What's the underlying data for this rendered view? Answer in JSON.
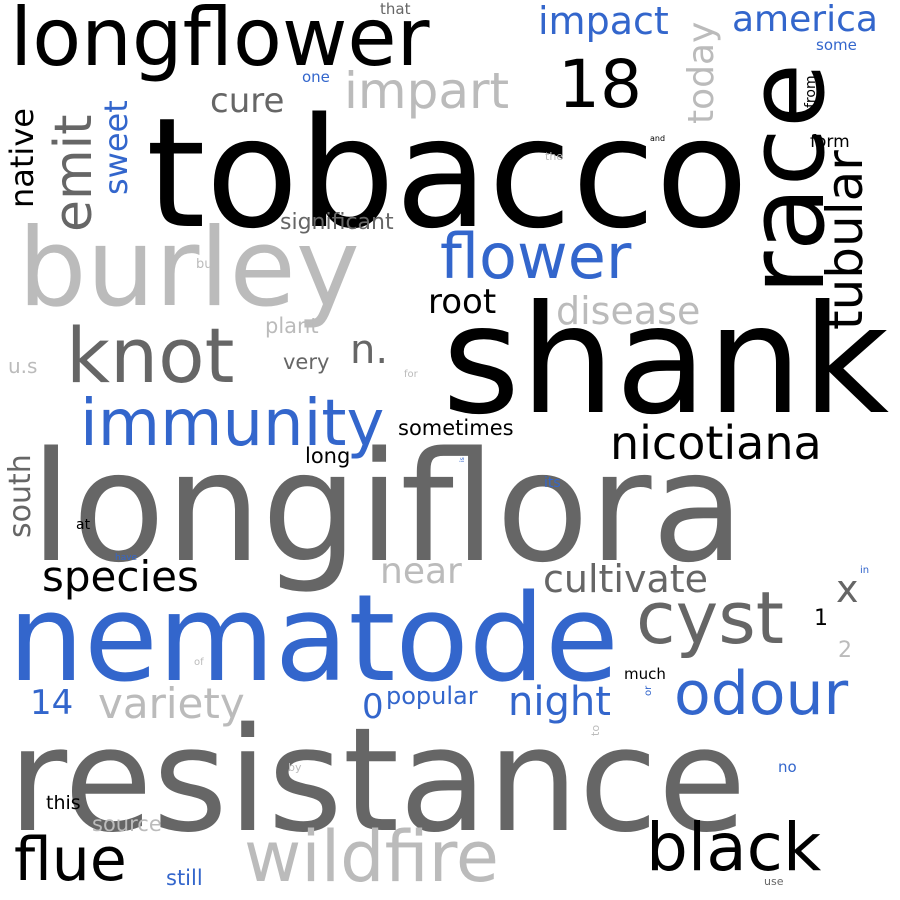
{
  "colors": {
    "black": "#000000",
    "dark_gray": "#666666",
    "light_gray": "#bbbbbb",
    "blue": "#3366cc",
    "background": "#ffffff"
  },
  "words": [
    {
      "text": "tobacco",
      "color": "black"
    },
    {
      "text": "longiflora",
      "color": "dark_gray"
    },
    {
      "text": "resistance",
      "color": "dark_gray"
    },
    {
      "text": "shank",
      "color": "black"
    },
    {
      "text": "nematode",
      "color": "blue"
    },
    {
      "text": "burley",
      "color": "light_gray"
    },
    {
      "text": "race",
      "color": "black"
    },
    {
      "text": "longflower",
      "color": "black"
    },
    {
      "text": "wildfire",
      "color": "light_gray"
    },
    {
      "text": "knot",
      "color": "dark_gray"
    },
    {
      "text": "black",
      "color": "black"
    },
    {
      "text": "immunity",
      "color": "blue"
    },
    {
      "text": "cyst",
      "color": "dark_gray"
    },
    {
      "text": "flower",
      "color": "blue"
    },
    {
      "text": "odour",
      "color": "blue"
    },
    {
      "text": "flue",
      "color": "black"
    },
    {
      "text": "tubular",
      "color": "black"
    },
    {
      "text": "emit",
      "color": "dark_gray"
    },
    {
      "text": "18",
      "color": "black"
    },
    {
      "text": "impart",
      "color": "light_gray"
    },
    {
      "text": "nicotiana",
      "color": "black"
    },
    {
      "text": "species",
      "color": "black"
    },
    {
      "text": "impact",
      "color": "blue"
    },
    {
      "text": "america",
      "color": "blue"
    },
    {
      "text": "variety",
      "color": "light_gray"
    },
    {
      "text": "cultivate",
      "color": "dark_gray"
    },
    {
      "text": "disease",
      "color": "light_gray"
    },
    {
      "text": "night",
      "color": "blue"
    },
    {
      "text": "today",
      "color": "light_gray"
    },
    {
      "text": "cure",
      "color": "dark_gray"
    },
    {
      "text": "root",
      "color": "black"
    },
    {
      "text": "native",
      "color": "black"
    },
    {
      "text": "sweet",
      "color": "blue"
    },
    {
      "text": "near",
      "color": "light_gray"
    },
    {
      "text": "n.",
      "color": "dark_gray"
    },
    {
      "text": "south",
      "color": "dark_gray"
    },
    {
      "text": "x",
      "color": "dark_gray"
    },
    {
      "text": "14",
      "color": "blue"
    },
    {
      "text": "0",
      "color": "blue"
    },
    {
      "text": "popular",
      "color": "blue"
    },
    {
      "text": "significant",
      "color": "dark_gray"
    },
    {
      "text": "sometimes",
      "color": "black"
    },
    {
      "text": "source",
      "color": "light_gray"
    },
    {
      "text": "plant",
      "color": "light_gray"
    },
    {
      "text": "very",
      "color": "dark_gray"
    },
    {
      "text": "long",
      "color": "black"
    },
    {
      "text": "this",
      "color": "black"
    },
    {
      "text": "still",
      "color": "blue"
    },
    {
      "text": "form",
      "color": "black"
    },
    {
      "text": "much",
      "color": "black"
    },
    {
      "text": "some",
      "color": "blue"
    },
    {
      "text": "one",
      "color": "blue"
    },
    {
      "text": "that",
      "color": "dark_gray"
    },
    {
      "text": "from",
      "color": "black"
    },
    {
      "text": "1",
      "color": "black"
    },
    {
      "text": "2",
      "color": "light_gray"
    },
    {
      "text": "u.s",
      "color": "light_gray"
    },
    {
      "text": "its",
      "color": "blue"
    },
    {
      "text": "at",
      "color": "black"
    },
    {
      "text": "no",
      "color": "blue"
    },
    {
      "text": "but",
      "color": "light_gray"
    },
    {
      "text": "the",
      "color": "light_gray"
    },
    {
      "text": "and",
      "color": "black"
    },
    {
      "text": "for",
      "color": "light_gray"
    },
    {
      "text": "in",
      "color": "blue"
    },
    {
      "text": "have",
      "color": "blue"
    },
    {
      "text": "of",
      "color": "light_gray"
    },
    {
      "text": "or",
      "color": "blue"
    },
    {
      "text": "to",
      "color": "light_gray"
    },
    {
      "text": "by",
      "color": "light_gray"
    },
    {
      "text": "use",
      "color": "dark_gray"
    },
    {
      "text": "is",
      "color": "blue"
    }
  ]
}
